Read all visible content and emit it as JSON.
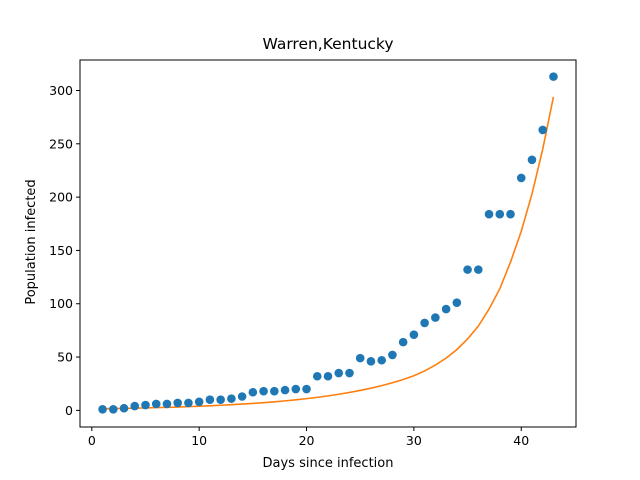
{
  "chart_data": {
    "type": "scatter",
    "title": "Warren,Kentucky",
    "xlabel": "Days since infection",
    "ylabel": "Population infected",
    "xlim": [
      -1.1,
      45.1
    ],
    "ylim": [
      -15.6,
      328.6
    ],
    "xticks": [
      0,
      10,
      20,
      30,
      40
    ],
    "yticks": [
      0,
      50,
      100,
      150,
      200,
      250,
      300
    ],
    "grid": false,
    "legend": "none",
    "series": [
      {
        "kind": "scatter",
        "color": "#1f77b4",
        "x": [
          1,
          2,
          3,
          4,
          5,
          6,
          7,
          8,
          9,
          10,
          11,
          12,
          13,
          14,
          15,
          16,
          17,
          18,
          19,
          20,
          21,
          22,
          23,
          24,
          25,
          26,
          27,
          28,
          29,
          30,
          31,
          32,
          33,
          34,
          35,
          36,
          37,
          38,
          39,
          40,
          41,
          42,
          43
        ],
        "y": [
          1,
          1,
          2,
          4,
          5,
          6,
          6,
          7,
          7,
          8,
          10,
          10,
          11,
          13,
          17,
          18,
          18,
          19,
          20,
          20,
          32,
          32,
          35,
          35,
          49,
          46,
          47,
          52,
          64,
          71,
          82,
          87,
          95,
          101,
          132,
          132,
          184,
          184,
          184,
          218,
          235,
          263,
          313
        ]
      },
      {
        "kind": "line",
        "color": "#ff7f0e",
        "x": [
          1,
          2,
          3,
          4,
          5,
          6,
          7,
          8,
          9,
          10,
          11,
          12,
          13,
          14,
          15,
          16,
          17,
          18,
          19,
          20,
          21,
          22,
          23,
          24,
          25,
          26,
          27,
          28,
          29,
          30,
          31,
          32,
          33,
          34,
          35,
          36,
          37,
          38,
          39,
          40,
          41,
          42,
          43
        ],
        "y": [
          1.5,
          1.7,
          1.9,
          2.1,
          2.3,
          2.6,
          2.8,
          3.1,
          3.5,
          3.9,
          4.3,
          4.8,
          5.3,
          5.9,
          6.5,
          7.2,
          8.0,
          8.9,
          9.9,
          11.0,
          12.2,
          13.6,
          15.1,
          16.8,
          18.7,
          20.8,
          23.2,
          25.9,
          28.9,
          32.5,
          37.0,
          42.5,
          49.0,
          57.0,
          67.0,
          79.0,
          95.0,
          114.0,
          139.0,
          168.0,
          203.0,
          245.0,
          294.0
        ]
      }
    ]
  }
}
